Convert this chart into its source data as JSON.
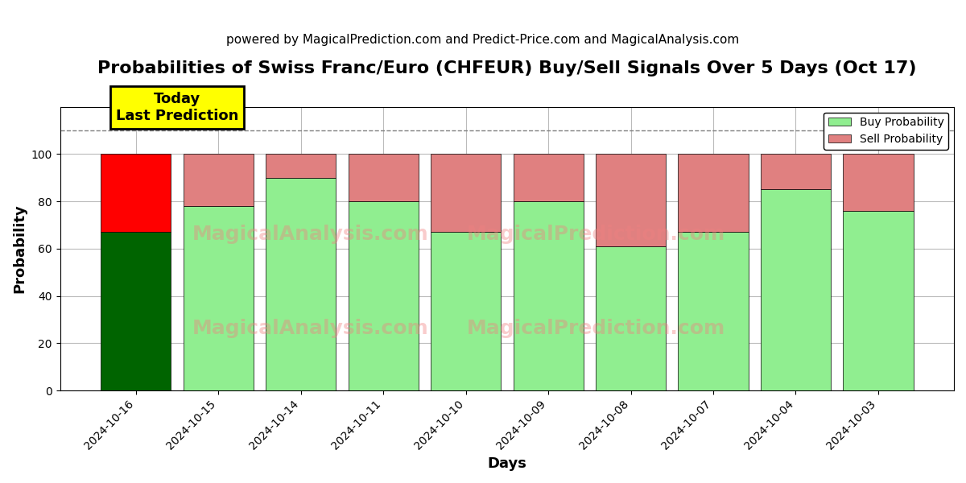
{
  "title": "Probabilities of Swiss Franc/Euro (CHFEUR) Buy/Sell Signals Over 5 Days (Oct 17)",
  "subtitle": "powered by MagicalPrediction.com and Predict-Price.com and MagicalAnalysis.com",
  "xlabel": "Days",
  "ylabel": "Probability",
  "categories": [
    "2024-10-16",
    "2024-10-15",
    "2024-10-14",
    "2024-10-11",
    "2024-10-10",
    "2024-10-09",
    "2024-10-08",
    "2024-10-07",
    "2024-10-04",
    "2024-10-03"
  ],
  "buy_values": [
    67,
    78,
    90,
    80,
    67,
    80,
    61,
    67,
    85,
    76
  ],
  "sell_values": [
    33,
    22,
    10,
    20,
    33,
    20,
    39,
    33,
    15,
    24
  ],
  "buy_color_today": "#006400",
  "sell_color_today": "#FF0000",
  "buy_color_rest": "#90EE90",
  "sell_color_rest": "#E08080",
  "today_annotation": "Today\nLast Prediction",
  "ylim": [
    0,
    120
  ],
  "yticks": [
    0,
    20,
    40,
    60,
    80,
    100
  ],
  "dashed_line_y": 110,
  "watermarks": [
    "MagicalAnalysis.com",
    "MagicalPrediction.com"
  ],
  "legend_buy": "Buy Probability",
  "legend_sell": "Sell Probability",
  "title_fontsize": 16,
  "subtitle_fontsize": 11,
  "label_fontsize": 13,
  "tick_fontsize": 10,
  "bar_width": 0.85,
  "background_color": "#ffffff",
  "grid_color": "#bbbbbb"
}
